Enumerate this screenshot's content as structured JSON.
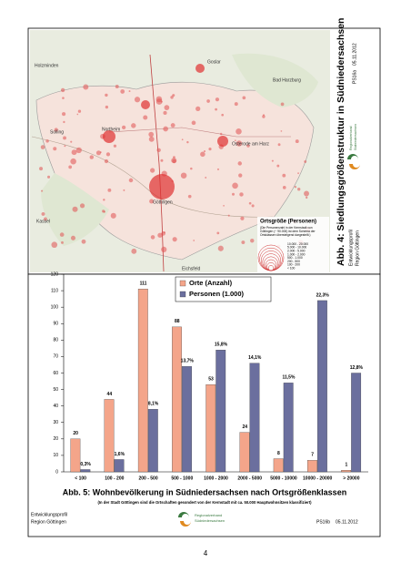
{
  "map": {
    "title": "Abb. 4: Siedlungsgrößenstruktur in Südniedersachsen",
    "places": [
      "Holzminden",
      "Goslar",
      "Bad Harzburg",
      "Solling",
      "Northeim",
      "Osterode am Harz",
      "Göttingen",
      "Kassel",
      "Eichsfeld"
    ],
    "legend": {
      "title": "Ortsgröße (Personen)",
      "note": [
        "(Die Personenzahl in der Kernstadt von",
        "Göttingen (~ 90.000) ist dem Schema der",
        "Ortsklassen übersteigend dargestellt.)"
      ],
      "classes": [
        "10.000 - 20.000",
        "5.000 - 10.000",
        "2.000 - 5.000",
        "1.000 - 2.000",
        "500 - 1.000",
        "200 - 500",
        "100 - 200",
        "< 100"
      ]
    },
    "profile": "Entwicklungsprofil",
    "region": "Region Göttingen",
    "org": [
      "Regionalverband",
      "Südniedersachsen"
    ],
    "code": "PS16a",
    "date": "05.11.2012"
  },
  "chart_data": {
    "type": "bar",
    "title": "Abb. 5: Wohnbevölkerung in Südniedersachsen nach Ortsgrößenklassen",
    "subtitle": "(In der Stadt Göttingen sind die Ortschaften gesondert von der Kernstadt mit ca. 50.000 Hauptwohnsitzen klassifiziert)",
    "categories": [
      "< 100",
      "100 - 200",
      "200 - 500",
      "500 - 1000",
      "1000 - 2000",
      "2000 - 5000",
      "5000 - 10000",
      "10000 - 20000",
      "> 20000"
    ],
    "series": [
      {
        "name": "Orte (Anzahl)",
        "color": "#f4a58a",
        "values": [
          20,
          44,
          111,
          88,
          53,
          24,
          8,
          7,
          1
        ]
      },
      {
        "name": "Personen (1.000)",
        "color": "#6b6f9e",
        "values": [
          1.4,
          7.5,
          38,
          64,
          74,
          66,
          54,
          104,
          60
        ],
        "shares": [
          "0,3%",
          "1,6%",
          "8,1%",
          "13,7%",
          "15,8%",
          "14,1%",
          "11,5%",
          "22,3%",
          "12,8%"
        ]
      }
    ],
    "ylim": [
      0,
      120
    ],
    "yticks": [
      0,
      10,
      20,
      30,
      40,
      50,
      60,
      70,
      80,
      90,
      100,
      110,
      120
    ],
    "grid": false
  },
  "footer": {
    "profile": "Entwicklungsprofil",
    "region": "Region Göttingen",
    "org": [
      "Regionalverband",
      "Südniedersachsen"
    ],
    "code": "PS16b",
    "date": "05.11.2012"
  },
  "page_number": "4"
}
